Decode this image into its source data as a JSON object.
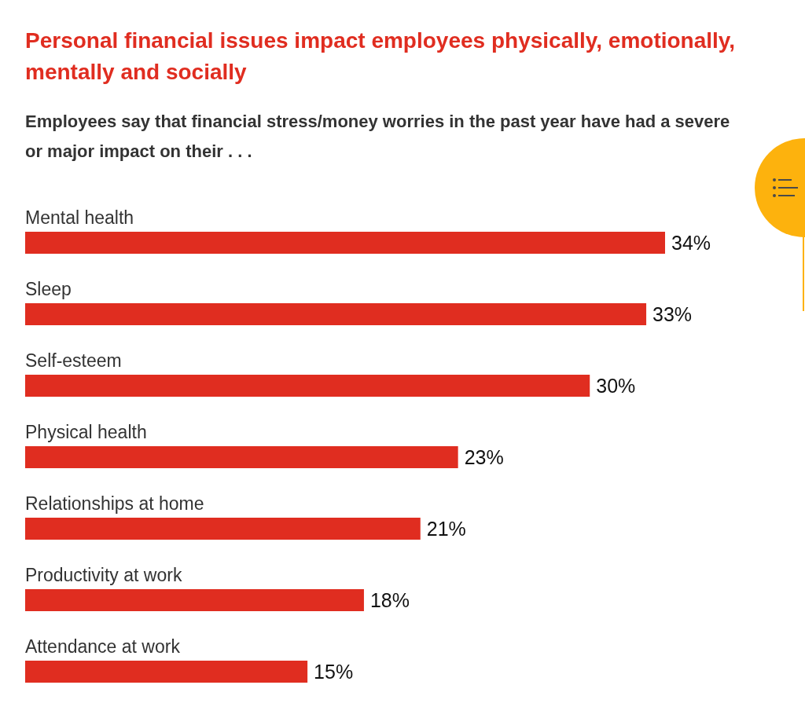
{
  "chart_data": {
    "type": "bar",
    "orientation": "horizontal",
    "title": "Personal financial issues impact employees physically, emotionally, mentally and socially",
    "subtitle": "Employees say that financial stress/money worries in the past year have had a severe or major impact on their . . .",
    "categories": [
      "Mental health",
      "Sleep",
      "Self-esteem",
      "Physical health",
      "Relationships at home",
      "Productivity at work",
      "Attendance at work"
    ],
    "values": [
      34,
      33,
      30,
      23,
      21,
      18,
      15
    ],
    "value_labels": [
      "34%",
      "33%",
      "30%",
      "23%",
      "21%",
      "18%",
      "15%"
    ],
    "color": "#e02d20"
  }
}
